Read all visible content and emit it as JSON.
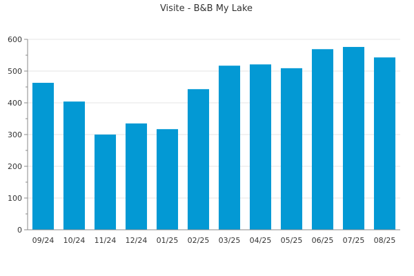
{
  "chart_data": {
    "type": "bar",
    "title": "Visite - B&B My Lake",
    "xlabel": "",
    "ylabel": "",
    "categories": [
      "09/24",
      "10/24",
      "11/24",
      "12/24",
      "01/25",
      "02/25",
      "03/25",
      "04/25",
      "05/25",
      "06/25",
      "07/25",
      "08/25"
    ],
    "values": [
      463,
      404,
      300,
      335,
      317,
      443,
      517,
      521,
      509,
      569,
      576,
      543
    ],
    "ylim": [
      0,
      600
    ],
    "yticks": [
      0,
      100,
      200,
      300,
      400,
      500,
      600
    ],
    "grid": true,
    "legend": "none",
    "bar_color": "#0399d4"
  }
}
